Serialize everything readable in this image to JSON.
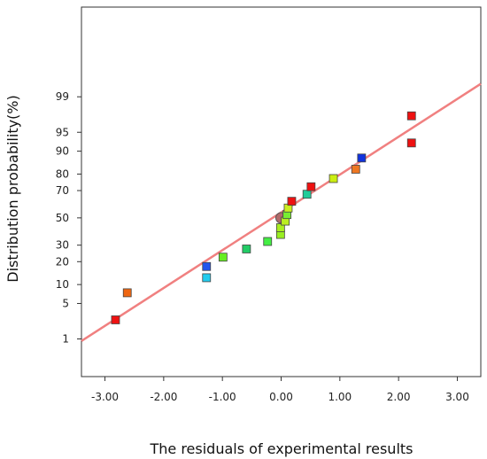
{
  "chart_data": {
    "type": "scatter",
    "title": "",
    "xlabel": "The residuals of experimental results",
    "ylabel": "Distribution probability(%)",
    "xlim": [
      -3.4,
      3.4
    ],
    "ylim_z": [
      -3.05,
      4.05
    ],
    "y_scale": "normal probability (percent)",
    "x_ticks": [
      -3,
      -2,
      -1,
      0,
      1,
      2,
      3
    ],
    "x_tick_labels": [
      "-3.00",
      "-2.00",
      "-1.00",
      "0.00",
      "1.00",
      "2.00",
      "3.00"
    ],
    "y_ticks": [
      1,
      5,
      10,
      20,
      30,
      50,
      70,
      80,
      90,
      95,
      99
    ],
    "y_tick_labels": [
      "1",
      "5",
      "10",
      "20",
      "30",
      "50",
      "70",
      "80",
      "90",
      "95",
      "99"
    ],
    "grid": false,
    "legend": "none",
    "reference_line": {
      "color": "#f08080",
      "points": [
        {
          "x": -3.4,
          "p": 0.9
        },
        {
          "x": 3.4,
          "p": 99.5
        }
      ]
    },
    "centroid": {
      "x": 0.0,
      "p": 50,
      "color": "#b06b6b"
    },
    "points": [
      {
        "x": -2.82,
        "p": 2.5,
        "color": "#ee1111"
      },
      {
        "x": -2.62,
        "p": 7.5,
        "color": "#ee6611"
      },
      {
        "x": -1.27,
        "p": 12.5,
        "color": "#22ccee"
      },
      {
        "x": -1.27,
        "p": 17.5,
        "color": "#2255ee"
      },
      {
        "x": -0.99,
        "p": 22.5,
        "color": "#66ee22"
      },
      {
        "x": -0.59,
        "p": 27.5,
        "color": "#22cc66"
      },
      {
        "x": -0.23,
        "p": 32.5,
        "color": "#44ee44"
      },
      {
        "x": -0.01,
        "p": 37.5,
        "color": "#99ee22"
      },
      {
        "x": -0.01,
        "p": 42.5,
        "color": "#aaee22"
      },
      {
        "x": 0.07,
        "p": 47.5,
        "color": "#bbee22"
      },
      {
        "x": 0.1,
        "p": 52.5,
        "color": "#77ee33"
      },
      {
        "x": 0.12,
        "p": 57.5,
        "color": "#ccee22"
      },
      {
        "x": 0.18,
        "p": 62.5,
        "color": "#ee1111"
      },
      {
        "x": 0.44,
        "p": 67.5,
        "color": "#22cc99"
      },
      {
        "x": 0.51,
        "p": 72.5,
        "color": "#ee1111"
      },
      {
        "x": 0.89,
        "p": 77.5,
        "color": "#ccee11"
      },
      {
        "x": 1.27,
        "p": 82.5,
        "color": "#ee7722"
      },
      {
        "x": 1.37,
        "p": 87.5,
        "color": "#1133dd"
      },
      {
        "x": 2.22,
        "p": 92.5,
        "color": "#ee1111"
      },
      {
        "x": 2.22,
        "p": 97.5,
        "color": "#ee1111"
      }
    ]
  }
}
